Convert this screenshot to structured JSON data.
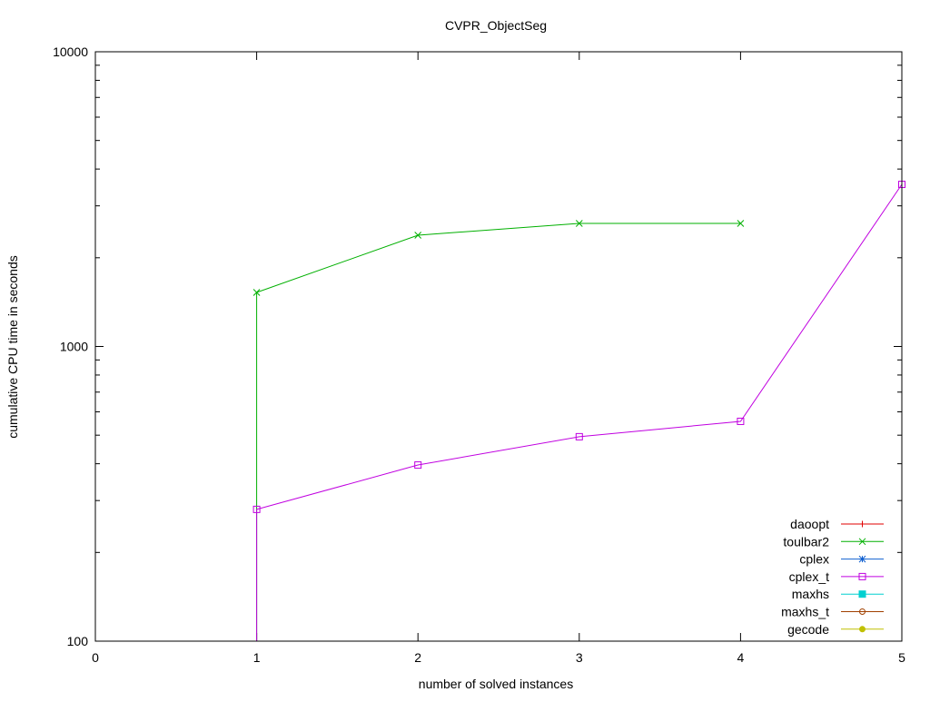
{
  "chart_data": {
    "type": "line",
    "title": "CVPR_ObjectSeg",
    "xlabel": "number of solved instances",
    "ylabel": "cumulative CPU time in seconds",
    "xlim": [
      0,
      5
    ],
    "ylim": [
      100,
      10000
    ],
    "yscale": "log",
    "xticks": [
      "0",
      "1",
      "2",
      "3",
      "4",
      "5"
    ],
    "yticks": [
      "100",
      "1000",
      "10000"
    ],
    "grid": false,
    "legend_position": "bottom-right",
    "series": [
      {
        "name": "daoopt",
        "color": "#e00000",
        "marker": "plus",
        "x": [],
        "y": []
      },
      {
        "name": "toulbar2",
        "color": "#00b000",
        "marker": "cross",
        "x": [
          1,
          2,
          3,
          4
        ],
        "y": [
          1525,
          2385,
          2616,
          2616
        ]
      },
      {
        "name": "cplex",
        "color": "#1060d0",
        "marker": "star",
        "x": [],
        "y": []
      },
      {
        "name": "cplex_t",
        "color": "#c000e0",
        "marker": "square",
        "x": [
          1,
          2,
          3,
          4,
          5
        ],
        "y": [
          280,
          396,
          494,
          557,
          3548
        ]
      },
      {
        "name": "maxhs",
        "color": "#00d0d0",
        "marker": "filled-square",
        "x": [],
        "y": []
      },
      {
        "name": "maxhs_t",
        "color": "#a04000",
        "marker": "circle",
        "x": [],
        "y": []
      },
      {
        "name": "gecode",
        "color": "#c0c000",
        "marker": "filled-circle",
        "x": [],
        "y": []
      }
    ]
  }
}
